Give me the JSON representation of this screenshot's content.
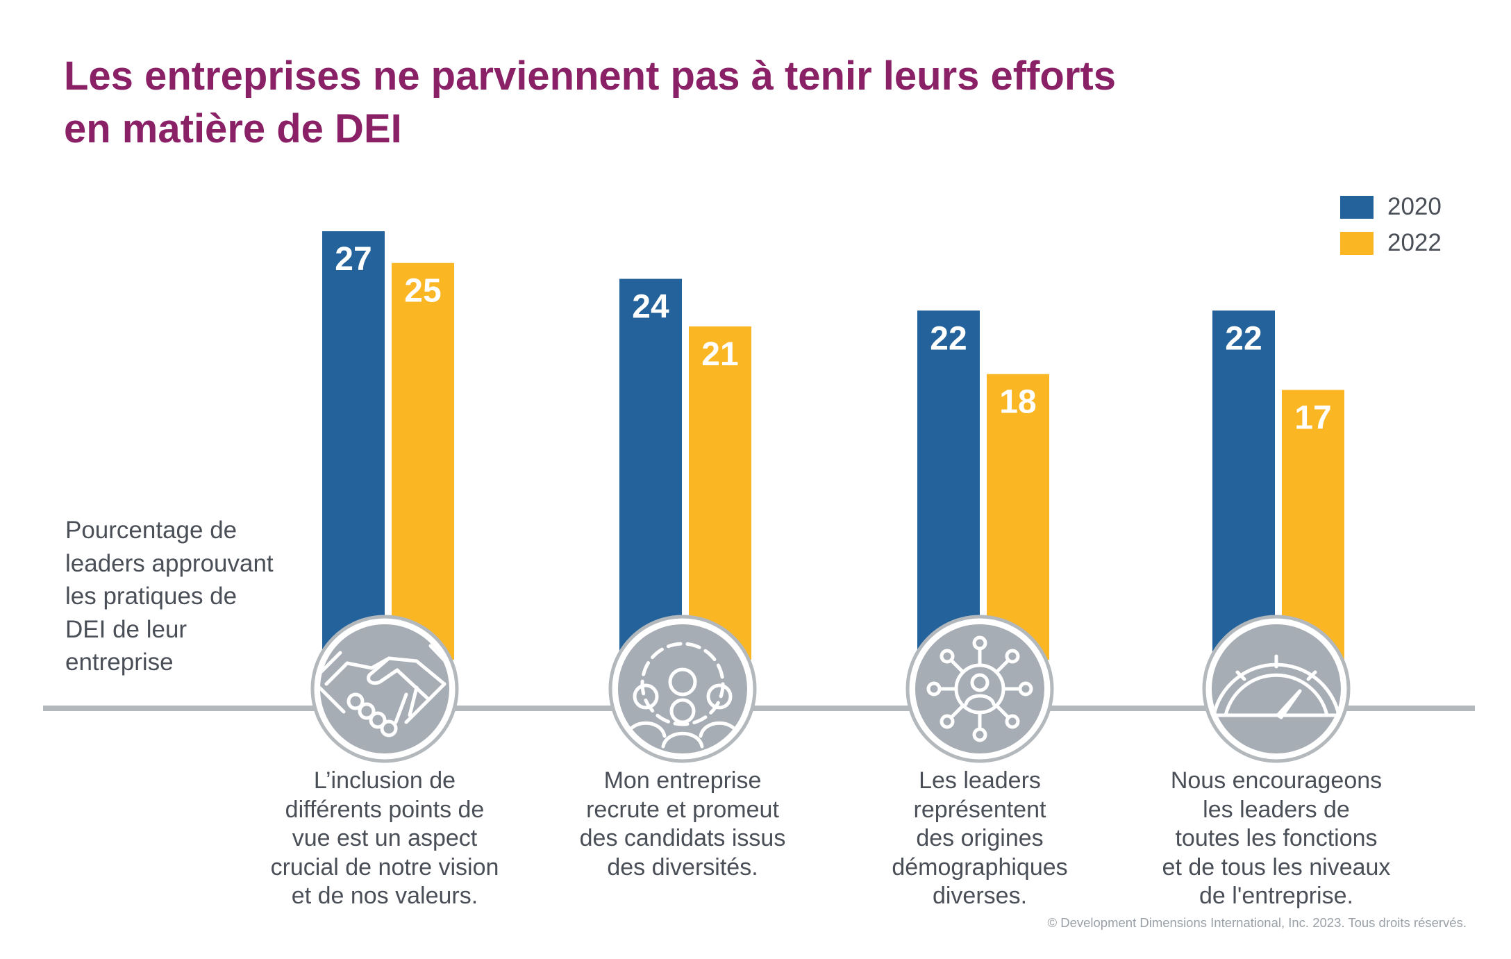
{
  "title_lines": [
    "Les entreprises ne parviennent pas à tenir leurs efforts",
    "en matière de DEI"
  ],
  "ylabel": "Pourcentage de leaders approuvant les pratiques de DEI de leur entreprise",
  "footer": "© Development Dimensions International, Inc. 2023. Tous droits réservés.",
  "colors": {
    "series_2020": "#23629a",
    "series_2022": "#fbb624",
    "title": "#8a2166",
    "baseline": "#b3b8bd",
    "icon_fill": "#a7adb4"
  },
  "chart_data": {
    "type": "bar",
    "title": "Les entreprises ne parviennent pas à tenir leurs efforts en matière de DEI",
    "ylabel": "Pourcentage de leaders approuvant les pratiques de DEI de leur entreprise",
    "xlabel": "",
    "legend_position": "top-right",
    "grid": false,
    "ylim": [
      0,
      27
    ],
    "categories": [
      "L’inclusion de différents points de vue est un aspect crucial de notre vision et de nos valeurs.",
      "Mon entreprise recrute et promeut des candidats issus des diversités.",
      "Les leaders représentent des origines démographiques diverses.",
      "Nous encourageons les leaders de toutes les fonctions et de tous les niveaux de l'entreprise."
    ],
    "series": [
      {
        "name": "2020",
        "values": [
          27,
          24,
          22,
          22
        ]
      },
      {
        "name": "2022",
        "values": [
          25,
          21,
          18,
          17
        ]
      }
    ],
    "category_icons": [
      "handshake-icon",
      "gear-people-icon",
      "network-person-icon",
      "gauge-icon"
    ]
  }
}
